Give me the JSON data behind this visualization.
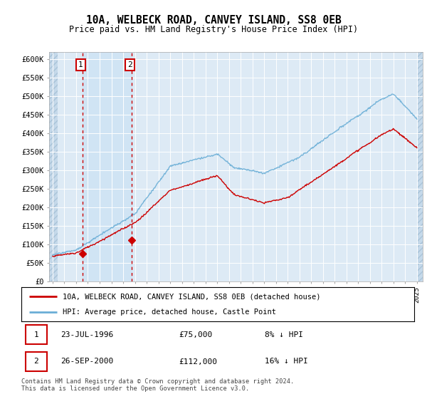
{
  "title": "10A, WELBECK ROAD, CANVEY ISLAND, SS8 0EB",
  "subtitle": "Price paid vs. HM Land Registry's House Price Index (HPI)",
  "ylim": [
    0,
    620000
  ],
  "xlim_start": 1993.7,
  "xlim_end": 2025.5,
  "hpi_color": "#6aaed6",
  "price_color": "#cc0000",
  "sale1_date": 1996.55,
  "sale1_price": 75000,
  "sale1_label": "1",
  "sale2_date": 2000.73,
  "sale2_price": 112000,
  "sale2_label": "2",
  "legend_line1": "10A, WELBECK ROAD, CANVEY ISLAND, SS8 0EB (detached house)",
  "legend_line2": "HPI: Average price, detached house, Castle Point",
  "table_row1": [
    "1",
    "23-JUL-1996",
    "£75,000",
    "8% ↓ HPI"
  ],
  "table_row2": [
    "2",
    "26-SEP-2000",
    "£112,000",
    "16% ↓ HPI"
  ],
  "footnote": "Contains HM Land Registry data © Crown copyright and database right 2024.\nThis data is licensed under the Open Government Licence v3.0.",
  "bg_chart": "#ddeaf5",
  "bg_hatch": "#c5d9ea",
  "bg_sale_span": "#d0e4f4",
  "hatch_left_end": 1994.42,
  "hatch_right_start": 2025.0,
  "sale_span_start": 1996.55,
  "sale_span_end": 2000.73
}
